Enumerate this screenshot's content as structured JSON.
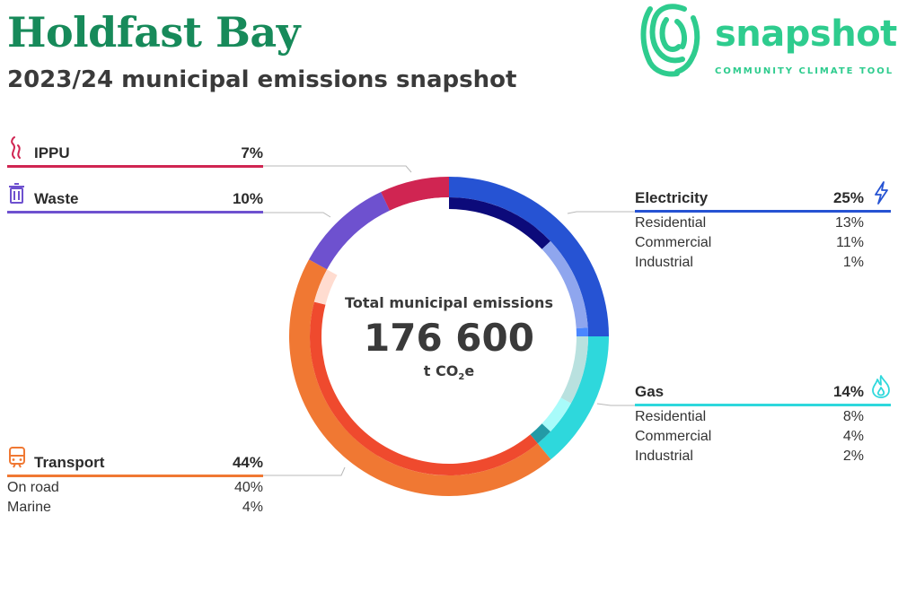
{
  "header": {
    "title": "Holdfast Bay",
    "subtitle": "2023/24 municipal emissions snapshot"
  },
  "logo": {
    "word": "snapshot",
    "tagline": "COMMUNITY CLIMATE TOOL",
    "color": "#2ecc8e",
    "icon": "fingerprint-icon"
  },
  "center": {
    "label": "Total municipal emissions",
    "value": "176 600",
    "unit_prefix": "t CO",
    "unit_sub": "2",
    "unit_suffix": "e"
  },
  "chart_data": {
    "type": "pie",
    "variant": "donut",
    "title": "",
    "total": 176600,
    "categories": [
      {
        "name": "Electricity",
        "value": 25,
        "label": "25%",
        "color": "#2653d3",
        "icon": "lightning-icon",
        "subs": [
          {
            "name": "Residential",
            "value": 13,
            "label": "13%",
            "color": "#0c0a7a"
          },
          {
            "name": "Commercial",
            "value": 11,
            "label": "11%",
            "color": "#8fa6ee"
          },
          {
            "name": "Industrial",
            "value": 1,
            "label": "1%",
            "color": "#4a86ff"
          }
        ]
      },
      {
        "name": "Gas",
        "value": 14,
        "label": "14%",
        "color": "#2ed8dc",
        "icon": "flame-icon",
        "subs": [
          {
            "name": "Residential",
            "value": 8,
            "label": "8%",
            "color": "#b9e1df"
          },
          {
            "name": "Commercial",
            "value": 4,
            "label": "4%",
            "color": "#a8fbfa"
          },
          {
            "name": "Industrial",
            "value": 2,
            "label": "2%",
            "color": "#239aa6"
          }
        ]
      },
      {
        "name": "Transport",
        "value": 44,
        "label": "44%",
        "color": "#f07833",
        "icon": "train-icon",
        "subs": [
          {
            "name": "On road",
            "value": 40,
            "label": "40%",
            "color": "#ef4a2e"
          },
          {
            "name": "Marine",
            "value": 4,
            "label": "4%",
            "color": "#ffdcd0"
          }
        ]
      },
      {
        "name": "Waste",
        "value": 10,
        "label": "10%",
        "color": "#6e51cf",
        "icon": "trash-icon",
        "subs": []
      },
      {
        "name": "IPPU",
        "value": 7,
        "label": "7%",
        "color": "#d02552",
        "icon": "smoke-icon",
        "subs": []
      }
    ]
  }
}
